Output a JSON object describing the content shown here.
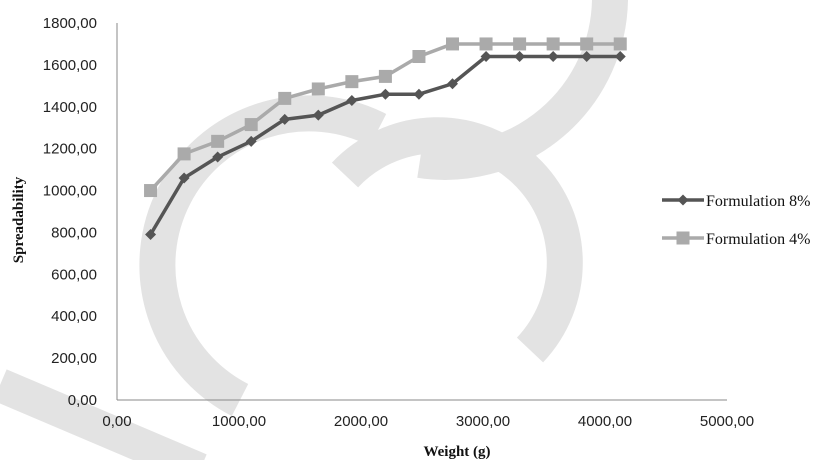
{
  "chart_data": {
    "type": "line",
    "title": "",
    "xlabel": "Weight (g)",
    "ylabel": "Spreadability",
    "xlim": [
      0,
      5000
    ],
    "ylim": [
      0,
      1800
    ],
    "x_ticks": [
      0,
      1000,
      2000,
      3000,
      4000,
      5000
    ],
    "x_tick_labels": [
      "0,00",
      "1000,00",
      "2000,00",
      "3000,00",
      "4000,00",
      "5000,00"
    ],
    "y_ticks": [
      0,
      200,
      400,
      600,
      800,
      1000,
      1200,
      1400,
      1600,
      1800
    ],
    "y_tick_labels": [
      "0,00",
      "200,00",
      "400,00",
      "600,00",
      "800,00",
      "1000,00",
      "1200,00",
      "1400,00",
      "1600,00",
      "1800,00"
    ],
    "grid": false,
    "legend_position": "right",
    "series": [
      {
        "name": "Formulation 8%",
        "color": "#555555",
        "marker": "diamond",
        "x": [
          275,
          550,
          825,
          1100,
          1375,
          1650,
          1925,
          2200,
          2475,
          2750,
          3025,
          3300,
          3575,
          3850,
          4125
        ],
        "y": [
          790,
          1060,
          1160,
          1235,
          1340,
          1360,
          1430,
          1460,
          1460,
          1510,
          1640,
          1640,
          1640,
          1640,
          1640
        ]
      },
      {
        "name": "Formulation 4%",
        "color": "#aaaaaa",
        "marker": "square",
        "x": [
          275,
          550,
          825,
          1100,
          1375,
          1650,
          1925,
          2200,
          2475,
          2750,
          3025,
          3300,
          3575,
          3850,
          4125
        ],
        "y": [
          1000,
          1175,
          1235,
          1315,
          1440,
          1485,
          1520,
          1545,
          1640,
          1700,
          1700,
          1700,
          1700,
          1700,
          1700
        ]
      }
    ],
    "watermark_color": "#e3e3e3"
  }
}
